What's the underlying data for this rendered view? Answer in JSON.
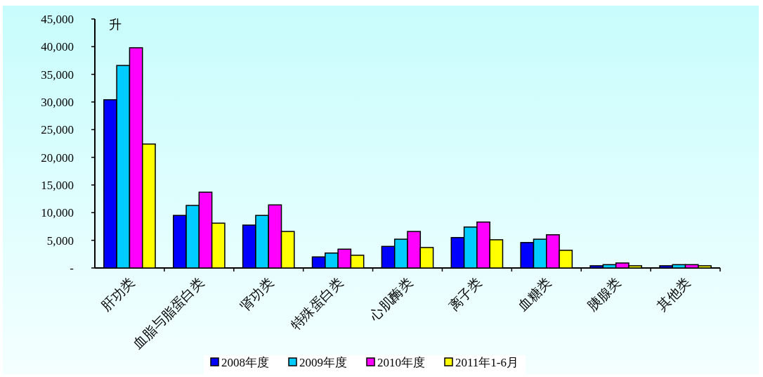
{
  "chart_data": {
    "type": "bar",
    "ylabel": "升",
    "categories": [
      "肝功类",
      "血脂与脂蛋白类",
      "肾功类",
      "特殊蛋白类",
      "心肌酶类",
      "离子类",
      "血糖类",
      "胰腺类",
      "其他类"
    ],
    "series": [
      {
        "name": "2008年度",
        "color": "#0000ff",
        "values": [
          30400,
          9500,
          7750,
          2000,
          3900,
          5500,
          4600,
          400,
          400
        ]
      },
      {
        "name": "2009年度",
        "color": "#00ccff",
        "values": [
          36600,
          11300,
          9500,
          2700,
          5200,
          7400,
          5200,
          600,
          600
        ]
      },
      {
        "name": "2010年度",
        "color": "#ff00ff",
        "values": [
          39800,
          13700,
          11400,
          3400,
          6600,
          8300,
          6000,
          900,
          600
        ]
      },
      {
        "name": "2011年1-6月",
        "color": "#ffff00",
        "values": [
          22400,
          8100,
          6600,
          2300,
          3700,
          5100,
          3200,
          400,
          400
        ]
      }
    ],
    "ylim": [
      0,
      45000
    ],
    "yticks": [
      {
        "value": 0,
        "label": "-"
      },
      {
        "value": 5000,
        "label": "5,000"
      },
      {
        "value": 10000,
        "label": "10,000"
      },
      {
        "value": 15000,
        "label": "15,000"
      },
      {
        "value": 20000,
        "label": "20,000"
      },
      {
        "value": 25000,
        "label": "25,000"
      },
      {
        "value": 30000,
        "label": "30,000"
      },
      {
        "value": 35000,
        "label": "35,000"
      },
      {
        "value": 40000,
        "label": "40,000"
      },
      {
        "value": 45000,
        "label": "45,000"
      }
    ],
    "grid": false,
    "legend": "bottom"
  }
}
